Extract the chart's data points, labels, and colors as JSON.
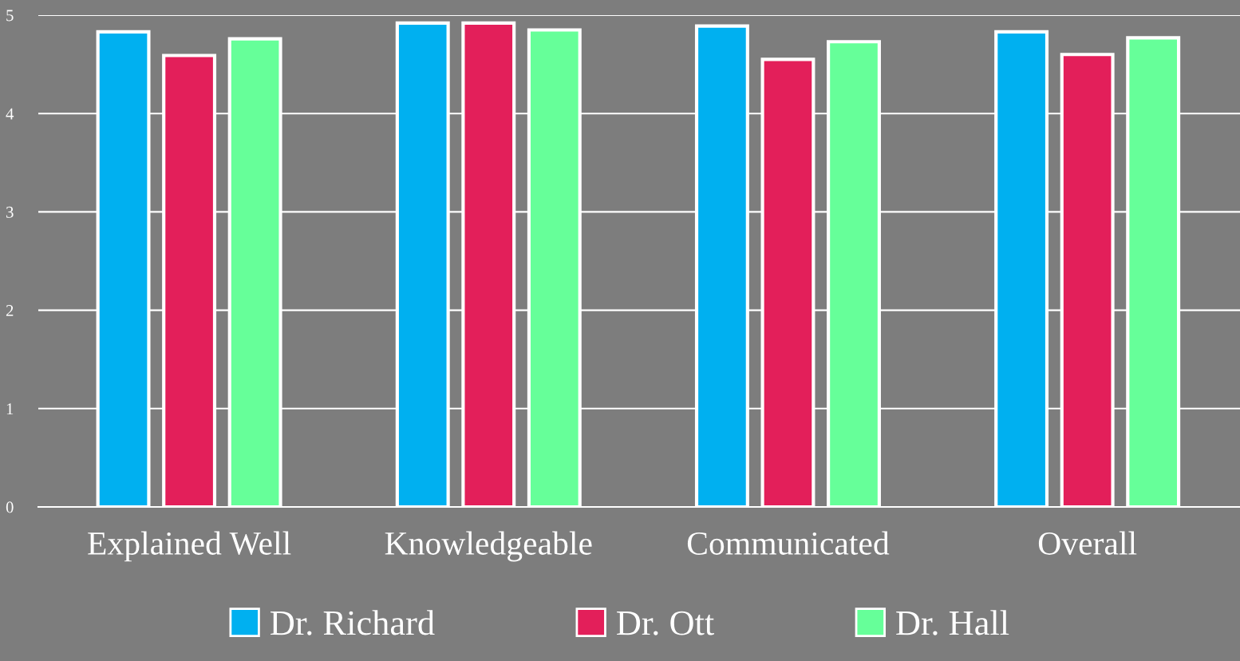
{
  "chart_data": {
    "type": "bar",
    "categories": [
      "Explained Well",
      "Knowledgeable",
      "Communicated",
      "Overall"
    ],
    "series": [
      {
        "name": "Dr. Richard",
        "color": "#00b0f0",
        "values": [
          4.83,
          4.92,
          4.89,
          4.83
        ]
      },
      {
        "name": "Dr. Ott",
        "color": "#e31f5a",
        "values": [
          4.59,
          4.92,
          4.55,
          4.6
        ]
      },
      {
        "name": "Dr. Hall",
        "color": "#66ff99",
        "values": [
          4.76,
          4.85,
          4.73,
          4.77
        ]
      }
    ],
    "ylim": [
      0,
      5
    ],
    "yticks": [
      0,
      1,
      2,
      3,
      4,
      5
    ],
    "grid": "y",
    "legend": "bottom"
  }
}
